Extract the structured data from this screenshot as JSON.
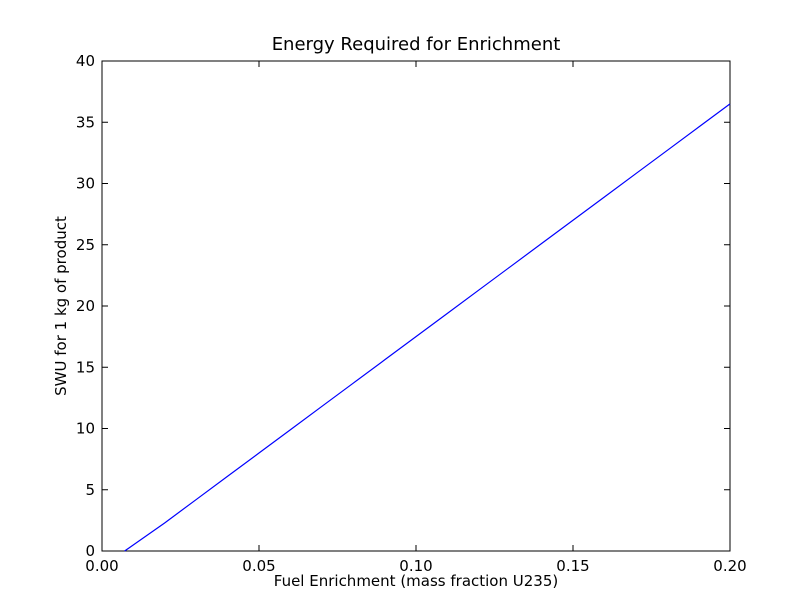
{
  "chart_data": {
    "type": "line",
    "title": "Energy Required for Enrichment",
    "xlabel": "Fuel Enrichment (mass fraction U235)",
    "ylabel": "SWU for 1 kg of product",
    "xlim": [
      0.0,
      0.2
    ],
    "ylim": [
      0,
      40
    ],
    "x_ticks": [
      "0.00",
      "0.05",
      "0.10",
      "0.15",
      "0.20"
    ],
    "x_tick_values": [
      0.0,
      0.05,
      0.1,
      0.15,
      0.2
    ],
    "y_ticks": [
      "0",
      "5",
      "10",
      "15",
      "20",
      "25",
      "30",
      "35",
      "40"
    ],
    "y_tick_values": [
      0,
      5,
      10,
      15,
      20,
      25,
      30,
      35,
      40
    ],
    "grid": false,
    "series": [
      {
        "color": "#0000ff",
        "x": [
          0.0072,
          0.01,
          0.02,
          0.03,
          0.04,
          0.05,
          0.06,
          0.07,
          0.08,
          0.09,
          0.1,
          0.11,
          0.12,
          0.13,
          0.14,
          0.15,
          0.16,
          0.17,
          0.18,
          0.19,
          0.2
        ],
        "y": [
          0.0,
          0.5,
          2.3,
          4.2,
          6.1,
          8.0,
          9.9,
          11.8,
          13.7,
          15.6,
          17.5,
          19.4,
          21.3,
          23.2,
          25.1,
          27.0,
          28.9,
          30.8,
          32.7,
          34.6,
          36.5
        ]
      }
    ]
  }
}
